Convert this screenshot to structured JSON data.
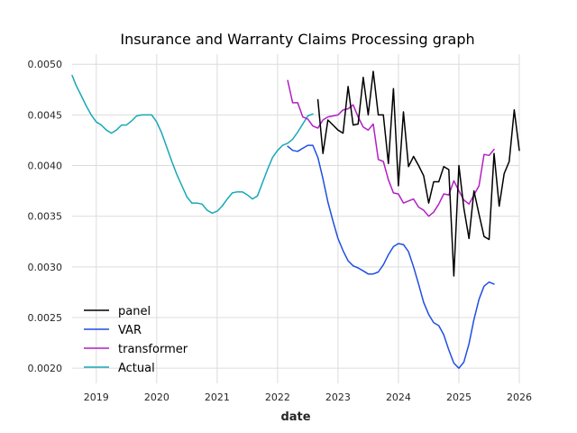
{
  "chart_data": {
    "type": "line",
    "title": "Insurance and Warranty Claims Processing graph",
    "xlabel": "date",
    "ylabel": "",
    "xlim": [
      2018.6,
      2026.0
    ],
    "ylim": [
      0.00185,
      0.0051
    ],
    "x_ticks": [
      2019,
      2020,
      2021,
      2022,
      2023,
      2024,
      2025,
      2026
    ],
    "x_tick_labels": [
      "2019",
      "2020",
      "2021",
      "2022",
      "2023",
      "2024",
      "2025",
      "2026"
    ],
    "y_ticks": [
      0.002,
      0.0025,
      0.003,
      0.0035,
      0.004,
      0.0045,
      0.005
    ],
    "y_tick_labels": [
      "0.0020",
      "0.0025",
      "0.0030",
      "0.0035",
      "0.0040",
      "0.0045",
      "0.0050"
    ],
    "grid": true,
    "legend_position": "lower-left",
    "series": [
      {
        "name": "panel",
        "color": "#000000",
        "x": [
          2022.667,
          2022.75,
          2022.833,
          2022.917,
          2023.0,
          2023.083,
          2023.167,
          2023.25,
          2023.333,
          2023.417,
          2023.5,
          2023.583,
          2023.667,
          2023.75,
          2023.833,
          2023.917,
          2024.0,
          2024.083,
          2024.167,
          2024.25,
          2024.333,
          2024.417,
          2024.5,
          2024.583,
          2024.667,
          2024.75,
          2024.833,
          2024.917,
          2025.0,
          2025.083,
          2025.167,
          2025.25,
          2025.333,
          2025.417,
          2025.5,
          2025.583,
          2025.667,
          2025.75,
          2025.833,
          2025.917,
          2026.0
        ],
        "values": [
          0.00465,
          0.00412,
          0.00445,
          0.0044,
          0.00435,
          0.00432,
          0.00478,
          0.0044,
          0.00441,
          0.00487,
          0.0045,
          0.00493,
          0.0045,
          0.0045,
          0.00402,
          0.00476,
          0.0038,
          0.00453,
          0.00399,
          0.00409,
          0.004,
          0.0039,
          0.00363,
          0.00384,
          0.00384,
          0.00399,
          0.00396,
          0.00291,
          0.004,
          0.00358,
          0.00328,
          0.00375,
          0.00352,
          0.0033,
          0.00327,
          0.00412,
          0.0036,
          0.00392,
          0.00404,
          0.00455,
          0.00415
        ]
      },
      {
        "name": "VAR",
        "color": "#1f4fe0",
        "x": [
          2022.167,
          2022.25,
          2022.333,
          2022.417,
          2022.5,
          2022.583,
          2022.667,
          2022.75,
          2022.833,
          2022.917,
          2023.0,
          2023.083,
          2023.167,
          2023.25,
          2023.333,
          2023.417,
          2023.5,
          2023.583,
          2023.667,
          2023.75,
          2023.833,
          2023.917,
          2024.0,
          2024.083,
          2024.167,
          2024.25,
          2024.333,
          2024.417,
          2024.5,
          2024.583,
          2024.667,
          2024.75,
          2024.833,
          2024.917,
          2025.0,
          2025.083,
          2025.167,
          2025.25,
          2025.333,
          2025.417,
          2025.5,
          2025.583
        ],
        "values": [
          0.00419,
          0.00415,
          0.00414,
          0.00417,
          0.0042,
          0.0042,
          0.00408,
          0.00387,
          0.00364,
          0.00345,
          0.00328,
          0.00316,
          0.00306,
          0.00301,
          0.00299,
          0.00296,
          0.00293,
          0.00293,
          0.00295,
          0.00302,
          0.00312,
          0.0032,
          0.00323,
          0.00322,
          0.00315,
          0.003,
          0.00283,
          0.00265,
          0.00253,
          0.00245,
          0.00242,
          0.00233,
          0.00218,
          0.00205,
          0.002,
          0.00206,
          0.00224,
          0.00248,
          0.00268,
          0.00281,
          0.00285,
          0.00283
        ]
      },
      {
        "name": "transformer",
        "color": "#b21fc4",
        "x": [
          2022.167,
          2022.25,
          2022.333,
          2022.417,
          2022.5,
          2022.583,
          2022.667,
          2022.75,
          2022.833,
          2022.917,
          2023.0,
          2023.083,
          2023.167,
          2023.25,
          2023.333,
          2023.417,
          2023.5,
          2023.583,
          2023.667,
          2023.75,
          2023.833,
          2023.917,
          2024.0,
          2024.083,
          2024.167,
          2024.25,
          2024.333,
          2024.417,
          2024.5,
          2024.583,
          2024.667,
          2024.75,
          2024.833,
          2024.917,
          2025.0,
          2025.083,
          2025.167,
          2025.25,
          2025.333,
          2025.417,
          2025.5,
          2025.583
        ],
        "values": [
          0.00484,
          0.00462,
          0.00462,
          0.00448,
          0.00446,
          0.00439,
          0.00437,
          0.00445,
          0.00448,
          0.00449,
          0.0045,
          0.00455,
          0.00456,
          0.0046,
          0.00448,
          0.00438,
          0.00435,
          0.00441,
          0.00406,
          0.00404,
          0.00386,
          0.00373,
          0.00372,
          0.00363,
          0.00365,
          0.00367,
          0.00359,
          0.00356,
          0.0035,
          0.00354,
          0.00362,
          0.00372,
          0.00371,
          0.00385,
          0.00375,
          0.00366,
          0.00362,
          0.00371,
          0.0038,
          0.00411,
          0.0041,
          0.00416
        ]
      },
      {
        "name": "Actual",
        "color": "#17a8b8",
        "x": [
          2018.6,
          2018.667,
          2018.75,
          2018.833,
          2018.917,
          2019.0,
          2019.083,
          2019.167,
          2019.25,
          2019.333,
          2019.417,
          2019.5,
          2019.583,
          2019.667,
          2019.75,
          2019.833,
          2019.917,
          2020.0,
          2020.083,
          2020.167,
          2020.25,
          2020.333,
          2020.417,
          2020.5,
          2020.583,
          2020.667,
          2020.75,
          2020.833,
          2020.917,
          2021.0,
          2021.083,
          2021.167,
          2021.25,
          2021.333,
          2021.417,
          2021.5,
          2021.583,
          2021.667,
          2021.75,
          2021.833,
          2021.917,
          2022.0,
          2022.083,
          2022.167,
          2022.25,
          2022.333,
          2022.417,
          2022.5,
          2022.583
        ],
        "values": [
          0.00489,
          0.00479,
          0.00469,
          0.00459,
          0.0045,
          0.00443,
          0.0044,
          0.00435,
          0.00432,
          0.00435,
          0.0044,
          0.0044,
          0.00444,
          0.00449,
          0.0045,
          0.0045,
          0.0045,
          0.00443,
          0.00432,
          0.00418,
          0.00404,
          0.00391,
          0.0038,
          0.00369,
          0.00363,
          0.00363,
          0.00362,
          0.00356,
          0.00353,
          0.00355,
          0.0036,
          0.00367,
          0.00373,
          0.00374,
          0.00374,
          0.00371,
          0.00367,
          0.0037,
          0.00383,
          0.00396,
          0.00408,
          0.00415,
          0.0042,
          0.00422,
          0.00426,
          0.00433,
          0.00441,
          0.00449,
          0.00451
        ]
      }
    ]
  }
}
